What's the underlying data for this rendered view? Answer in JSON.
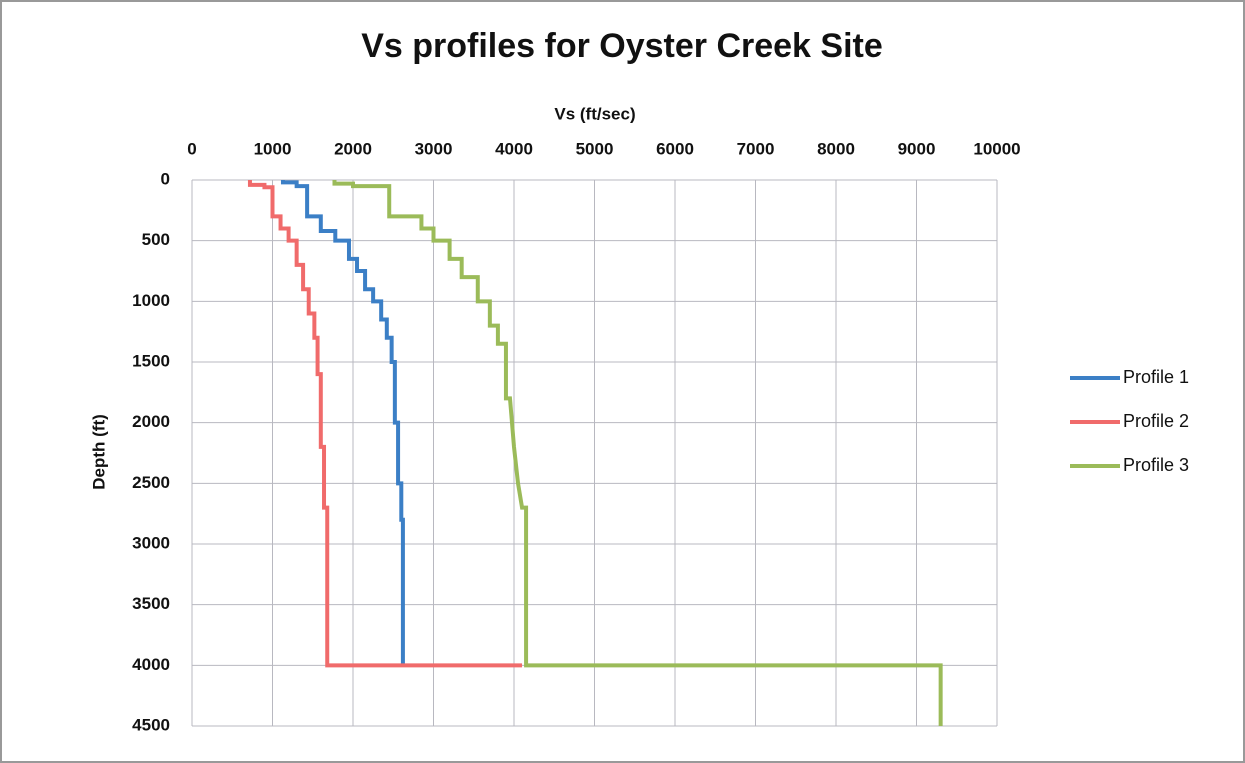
{
  "chart_data": {
    "type": "line",
    "title": "Vs profiles for Oyster Creek Site",
    "x_label": "Vs (ft/sec)",
    "y_label": "Depth (ft)",
    "xlim": [
      0,
      10000
    ],
    "xticks": [
      0,
      1000,
      2000,
      3000,
      4000,
      5000,
      6000,
      7000,
      8000,
      9000,
      10000
    ],
    "ylim": [
      0,
      4500
    ],
    "yticks": [
      0,
      500,
      1000,
      1500,
      2000,
      2500,
      3000,
      3500,
      4000,
      4500
    ],
    "y_reversed": true,
    "x_axis_position": "top",
    "grid": true,
    "legend": "right",
    "series": [
      {
        "name": "Profile 1",
        "color": "#3b7fc6",
        "x": [
          1130,
          1130,
          1300,
          1300,
          1430,
          1430,
          1600,
          1600,
          1780,
          1780,
          1950,
          1950,
          2050,
          2050,
          2150,
          2150,
          2250,
          2250,
          2350,
          2350,
          2420,
          2420,
          2480,
          2480,
          2520,
          2520,
          2560,
          2560,
          2600,
          2600,
          2620,
          2620
        ],
        "values": [
          0,
          20,
          20,
          50,
          50,
          300,
          300,
          420,
          420,
          500,
          500,
          650,
          650,
          750,
          750,
          900,
          900,
          1000,
          1000,
          1150,
          1150,
          1300,
          1300,
          1500,
          1500,
          2000,
          2000,
          2500,
          2500,
          2800,
          2800,
          4000
        ]
      },
      {
        "name": "Profile 2",
        "color": "#f06b6b",
        "x": [
          720,
          720,
          900,
          900,
          1000,
          1000,
          1100,
          1100,
          1200,
          1200,
          1300,
          1300,
          1380,
          1380,
          1450,
          1450,
          1520,
          1520,
          1560,
          1560,
          1600,
          1600,
          1640,
          1640,
          1680,
          1680,
          4100
        ],
        "values": [
          0,
          40,
          40,
          60,
          60,
          300,
          300,
          400,
          400,
          500,
          500,
          700,
          700,
          900,
          900,
          1100,
          1100,
          1300,
          1300,
          1600,
          1600,
          2200,
          2200,
          2700,
          2700,
          4000,
          4000
        ]
      },
      {
        "name": "Profile 3",
        "color": "#9bbb59",
        "x": [
          1770,
          1770,
          2000,
          2000,
          2450,
          2450,
          2850,
          2850,
          3000,
          3000,
          3200,
          3200,
          3350,
          3350,
          3550,
          3550,
          3700,
          3700,
          3800,
          3800,
          3900,
          3900,
          3950,
          4000,
          4050,
          4100,
          4150,
          4150,
          9300,
          9300
        ],
        "values": [
          0,
          30,
          30,
          50,
          50,
          300,
          300,
          400,
          400,
          500,
          500,
          650,
          650,
          800,
          800,
          1000,
          1000,
          1200,
          1200,
          1350,
          1350,
          1800,
          1800,
          2200,
          2500,
          2700,
          2700,
          4000,
          4000,
          4500
        ]
      }
    ]
  }
}
